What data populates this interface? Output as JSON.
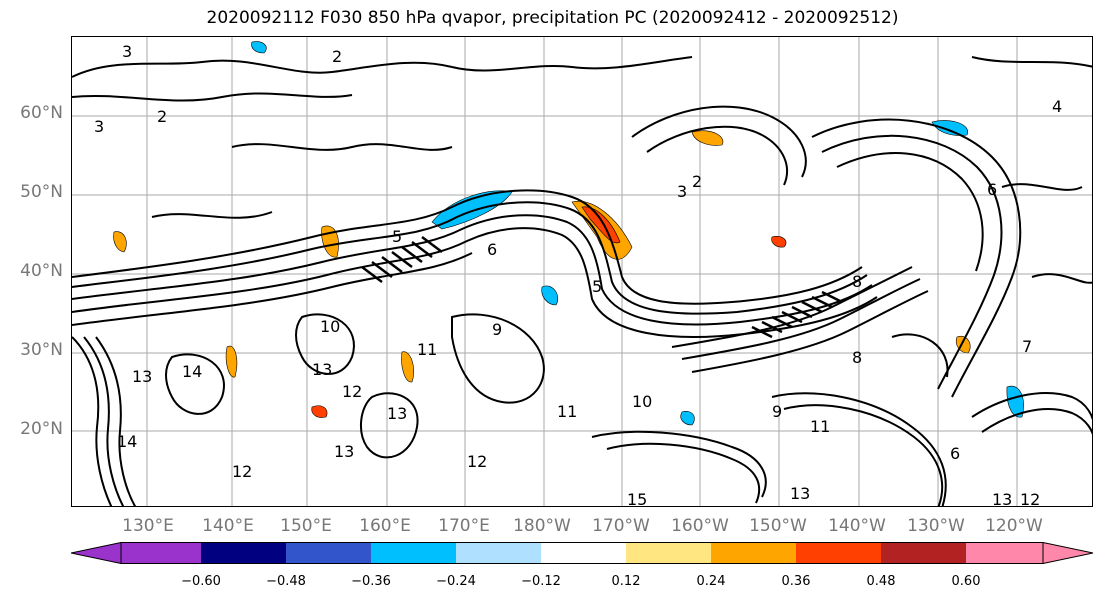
{
  "title": "2020092112 F030 850 hPa qvapor, precipitation PC (2020092412 - 2020092512)",
  "lat_labels": [
    "60°N",
    "50°N",
    "40°N",
    "30°N",
    "20°N"
  ],
  "lon_labels": [
    "130°E",
    "140°E",
    "150°E",
    "160°E",
    "170°E",
    "180°W",
    "170°W",
    "160°W",
    "150°W",
    "140°W",
    "130°W",
    "120°W"
  ],
  "colorbar": {
    "ticks": [
      "−0.60",
      "−0.48",
      "−0.36",
      "−0.24",
      "−0.12",
      "0.12",
      "0.24",
      "0.36",
      "0.48",
      "0.60"
    ],
    "colors": [
      "#9933cc",
      "#000080",
      "#3355cc",
      "#00bfff",
      "#b0e0ff",
      "#ffffff",
      "#ffe680",
      "#ffa500",
      "#ff4000",
      "#b22222",
      "#ff88aa"
    ]
  },
  "contour_labels": [
    "3",
    "2",
    "2",
    "3",
    "5",
    "6",
    "5",
    "3",
    "2",
    "4",
    "6",
    "10",
    "9",
    "11",
    "13",
    "12",
    "13",
    "13",
    "14",
    "11",
    "12",
    "15",
    "10",
    "13",
    "11",
    "9",
    "8",
    "6",
    "12",
    "13",
    "12",
    "8",
    "7",
    "14",
    "13"
  ]
}
